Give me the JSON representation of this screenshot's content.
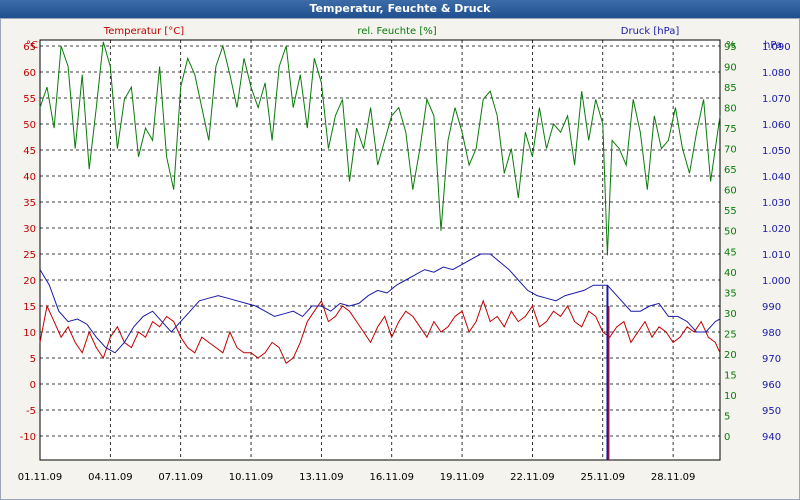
{
  "window": {
    "title": "Temperatur, Feuchte & Druck"
  },
  "colors": {
    "temp": "#c00000",
    "hum": "#0a7a0a",
    "press": "#1a1aa8",
    "grid": "#000000"
  },
  "chart_data": {
    "type": "line",
    "title": "Temperatur, Feuchte & Druck",
    "grid": true,
    "x_start": "01.11.09",
    "x_end": "30.11.09",
    "x_ticks": [
      "01.11.09",
      "04.11.09",
      "07.11.09",
      "10.11.09",
      "13.11.09",
      "16.11.09",
      "19.11.09",
      "22.11.09",
      "25.11.09",
      "28.11.09"
    ],
    "left_axis": {
      "unit": "°C",
      "ticks": [
        "65",
        "60",
        "55",
        "50",
        "45",
        "40",
        "35",
        "30",
        "25",
        "20",
        "15",
        "10",
        "5",
        "0",
        "-5",
        "-10"
      ]
    },
    "mid_axis": {
      "unit": "%",
      "ticks": [
        "95",
        "90",
        "85",
        "80",
        "75",
        "70",
        "65",
        "60",
        "55",
        "50",
        "45",
        "40",
        "35",
        "30",
        "25",
        "20",
        "15",
        "10",
        "5",
        "0"
      ]
    },
    "right_axis": {
      "unit": "hPa",
      "ticks": [
        "1.090",
        "1.080",
        "1.070",
        "1.060",
        "1.050",
        "1.040",
        "1.030",
        "1.020",
        "1.010",
        "1.000",
        "990",
        "980",
        "970",
        "960",
        "950",
        "940"
      ]
    },
    "series": [
      {
        "name": "Temperatur [°C]",
        "axis": "left",
        "color": "#c00000",
        "x": [
          1.0,
          1.3,
          1.6,
          1.9,
          2.2,
          2.5,
          2.8,
          3.1,
          3.4,
          3.7,
          4.0,
          4.3,
          4.6,
          4.9,
          5.2,
          5.5,
          5.8,
          6.1,
          6.4,
          6.7,
          7.0,
          7.3,
          7.6,
          7.9,
          8.2,
          8.5,
          8.8,
          9.1,
          9.4,
          9.7,
          10.0,
          10.3,
          10.6,
          10.9,
          11.2,
          11.5,
          11.8,
          12.1,
          12.4,
          12.7,
          13.0,
          13.3,
          13.6,
          13.9,
          14.2,
          14.5,
          14.8,
          15.1,
          15.4,
          15.7,
          16.0,
          16.3,
          16.6,
          16.9,
          17.2,
          17.5,
          17.8,
          18.1,
          18.4,
          18.7,
          19.0,
          19.3,
          19.6,
          19.9,
          20.2,
          20.5,
          20.8,
          21.1,
          21.4,
          21.7,
          22.0,
          22.3,
          22.6,
          22.9,
          23.2,
          23.5,
          23.8,
          24.1,
          24.4,
          24.7,
          25.0,
          25.3,
          25.6,
          25.9,
          26.2,
          26.5,
          26.8,
          27.1,
          27.4,
          27.7,
          28.0,
          28.3,
          28.6,
          28.9,
          29.2,
          29.5,
          29.8,
          30.0
        ],
        "y": [
          8,
          15,
          12,
          9,
          11,
          8,
          6,
          10,
          7,
          5,
          9,
          11,
          8,
          7,
          10,
          9,
          12,
          11,
          13,
          12,
          9,
          7,
          6,
          9,
          8,
          7,
          6,
          10,
          7,
          6,
          6,
          5,
          6,
          8,
          7,
          4,
          5,
          8,
          12,
          14,
          16,
          12,
          13,
          15,
          14,
          12,
          10,
          8,
          11,
          13,
          9,
          12,
          14,
          13,
          11,
          9,
          12,
          10,
          11,
          13,
          14,
          10,
          12,
          16,
          12,
          13,
          11,
          14,
          12,
          13,
          15,
          11,
          12,
          14,
          13,
          15,
          12,
          11,
          14,
          13,
          10,
          9,
          11,
          12,
          8,
          10,
          12,
          9,
          11,
          10,
          8,
          9,
          11,
          10,
          12,
          9,
          8,
          6
        ],
        "note_spike": [
          25.2,
          -10
        ]
      },
      {
        "name": "rel. Feuchte [%]",
        "axis": "mid",
        "color": "#0a7a0a",
        "x": [
          1.0,
          1.3,
          1.6,
          1.9,
          2.2,
          2.5,
          2.8,
          3.1,
          3.4,
          3.7,
          4.0,
          4.3,
          4.6,
          4.9,
          5.2,
          5.5,
          5.8,
          6.1,
          6.4,
          6.7,
          7.0,
          7.3,
          7.6,
          7.9,
          8.2,
          8.5,
          8.8,
          9.1,
          9.4,
          9.7,
          10.0,
          10.3,
          10.6,
          10.9,
          11.2,
          11.5,
          11.8,
          12.1,
          12.4,
          12.7,
          13.0,
          13.3,
          13.6,
          13.9,
          14.2,
          14.5,
          14.8,
          15.1,
          15.4,
          15.7,
          16.0,
          16.3,
          16.6,
          16.9,
          17.2,
          17.5,
          17.8,
          18.1,
          18.4,
          18.7,
          19.0,
          19.3,
          19.6,
          19.9,
          20.2,
          20.5,
          20.8,
          21.1,
          21.4,
          21.7,
          22.0,
          22.3,
          22.6,
          22.9,
          23.2,
          23.5,
          23.8,
          24.1,
          24.4,
          24.7,
          25.0,
          25.2,
          25.4,
          25.7,
          26.0,
          26.3,
          26.6,
          26.9,
          27.2,
          27.5,
          27.8,
          28.1,
          28.4,
          28.7,
          29.0,
          29.3,
          29.6,
          30.0
        ],
        "y": [
          80,
          85,
          75,
          95,
          90,
          70,
          88,
          65,
          80,
          96,
          90,
          70,
          82,
          85,
          68,
          75,
          72,
          90,
          68,
          60,
          85,
          92,
          88,
          80,
          72,
          90,
          95,
          88,
          80,
          92,
          85,
          80,
          86,
          72,
          90,
          95,
          80,
          88,
          75,
          92,
          86,
          70,
          78,
          82,
          62,
          75,
          70,
          80,
          66,
          72,
          78,
          80,
          74,
          60,
          70,
          82,
          78,
          50,
          72,
          80,
          74,
          66,
          70,
          82,
          84,
          78,
          64,
          70,
          58,
          74,
          68,
          80,
          70,
          76,
          74,
          78,
          66,
          84,
          72,
          82,
          76,
          44,
          72,
          70,
          66,
          82,
          74,
          60,
          78,
          70,
          72,
          80,
          70,
          64,
          74,
          82,
          62,
          78
        ]
      },
      {
        "name": "Druck [hPa]",
        "axis": "right",
        "color": "#1a1aa8",
        "x": [
          1.0,
          1.4,
          1.8,
          2.2,
          2.6,
          3.0,
          3.4,
          3.8,
          4.2,
          4.6,
          5.0,
          5.4,
          5.8,
          6.2,
          6.6,
          7.0,
          7.4,
          7.8,
          8.2,
          8.6,
          9.0,
          9.4,
          9.8,
          10.2,
          10.6,
          11.0,
          11.4,
          11.8,
          12.2,
          12.6,
          13.0,
          13.4,
          13.8,
          14.2,
          14.6,
          15.0,
          15.4,
          15.8,
          16.2,
          16.6,
          17.0,
          17.4,
          17.8,
          18.2,
          18.6,
          19.0,
          19.4,
          19.8,
          20.2,
          20.6,
          21.0,
          21.4,
          21.8,
          22.2,
          22.6,
          23.0,
          23.4,
          23.8,
          24.2,
          24.6,
          25.0,
          25.2,
          25.4,
          25.8,
          26.2,
          26.6,
          27.0,
          27.4,
          27.8,
          28.2,
          28.6,
          29.0,
          29.4,
          29.8,
          30.0
        ],
        "y": [
          1004,
          998,
          988,
          984,
          985,
          983,
          978,
          974,
          972,
          976,
          982,
          986,
          988,
          984,
          980,
          984,
          988,
          992,
          993,
          994,
          993,
          992,
          991,
          990,
          988,
          986,
          987,
          988,
          986,
          990,
          990,
          988,
          991,
          990,
          991,
          994,
          996,
          995,
          998,
          1000,
          1002,
          1004,
          1003,
          1005,
          1004,
          1006,
          1008,
          1010,
          1010,
          1007,
          1004,
          1000,
          996,
          994,
          993,
          992,
          994,
          995,
          996,
          998,
          998,
          998,
          996,
          992,
          988,
          988,
          990,
          991,
          986,
          986,
          984,
          980,
          980,
          984,
          985
        ]
      }
    ]
  }
}
